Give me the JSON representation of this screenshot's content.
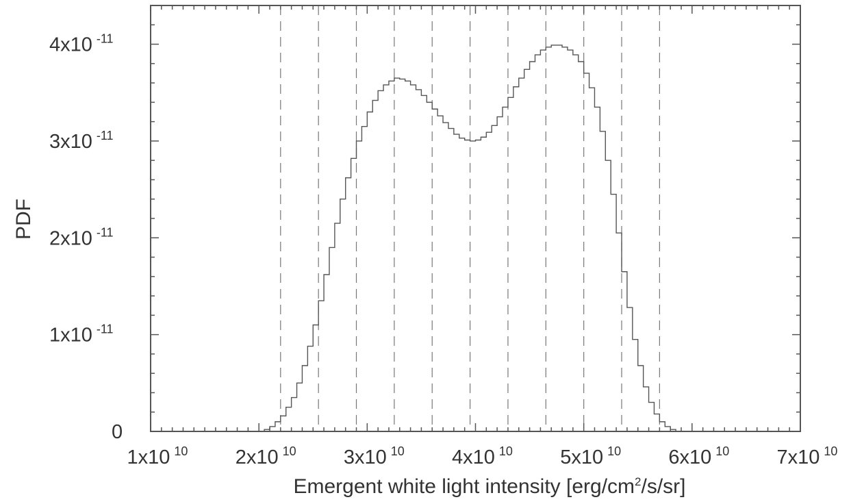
{
  "chart_data": {
    "type": "histogram",
    "title": "",
    "xlabel": "Emergent white light intensity [erg/cm",
    "xlabel_sup": "2",
    "xlabel_tail": "/s/sr]",
    "ylabel": "PDF",
    "xlim": [
      10000000000.0,
      70000000000.0
    ],
    "ylim": [
      0,
      4.4e-11
    ],
    "grid": false,
    "line_color": "#555555",
    "x_ticks": [
      {
        "mant": "1x10",
        "exp": "10",
        "value": 10000000000.0
      },
      {
        "mant": "2x10",
        "exp": "10",
        "value": 20000000000.0
      },
      {
        "mant": "3x10",
        "exp": "10",
        "value": 30000000000.0
      },
      {
        "mant": "4x10",
        "exp": "10",
        "value": 40000000000.0
      },
      {
        "mant": "5x10",
        "exp": "10",
        "value": 50000000000.0
      },
      {
        "mant": "6x10",
        "exp": "10",
        "value": 60000000000.0
      },
      {
        "mant": "7x10",
        "exp": "10",
        "value": 70000000000.0
      }
    ],
    "y_ticks": [
      {
        "mant": "0",
        "exp": "",
        "value": 0
      },
      {
        "mant": "1x10",
        "exp": "-11",
        "value": 1e-11
      },
      {
        "mant": "2x10",
        "exp": "-11",
        "value": 2e-11
      },
      {
        "mant": "3x10",
        "exp": "-11",
        "value": 3e-11
      },
      {
        "mant": "4x10",
        "exp": "-11",
        "value": 4e-11
      }
    ],
    "reference_lines_x": [
      22000000000.0,
      25500000000.0,
      29000000000.0,
      32500000000.0,
      36000000000.0,
      39500000000.0,
      43000000000.0,
      46500000000.0,
      50000000000.0,
      53500000000.0,
      57000000000.0
    ],
    "bin_width": 500000000.0,
    "bin_start": 20000000000.0,
    "values": [
      0.0,
      2e-13,
      5e-13,
      1e-12,
      1.6e-12,
      2.5e-12,
      3.5e-12,
      5e-12,
      6.8e-12,
      8.8e-12,
      1.1e-11,
      1.35e-11,
      1.62e-11,
      1.9e-11,
      2.15e-11,
      2.4e-11,
      2.62e-11,
      2.82e-11,
      3e-11,
      3.15e-11,
      3.3e-11,
      3.42e-11,
      3.52e-11,
      3.58e-11,
      3.62e-11,
      3.65e-11,
      3.64e-11,
      3.62e-11,
      3.58e-11,
      3.53e-11,
      3.47e-11,
      3.4e-11,
      3.33e-11,
      3.26e-11,
      3.19e-11,
      3.13e-11,
      3.07e-11,
      3.03e-11,
      3.01e-11,
      3e-11,
      3.01e-11,
      3.04e-11,
      3.09e-11,
      3.16e-11,
      3.25e-11,
      3.35e-11,
      3.45e-11,
      3.56e-11,
      3.65e-11,
      3.74e-11,
      3.82e-11,
      3.89e-11,
      3.94e-11,
      3.97e-11,
      3.99e-11,
      3.99e-11,
      3.97e-11,
      3.94e-11,
      3.89e-11,
      3.82e-11,
      3.7e-11,
      3.55e-11,
      3.35e-11,
      3.1e-11,
      2.8e-11,
      2.45e-11,
      2.05e-11,
      1.65e-11,
      1.28e-11,
      9.5e-12,
      6.8e-12,
      4.6e-12,
      3e-12,
      1.8e-12,
      1e-12,
      5e-13,
      2e-13,
      0.0
    ]
  }
}
